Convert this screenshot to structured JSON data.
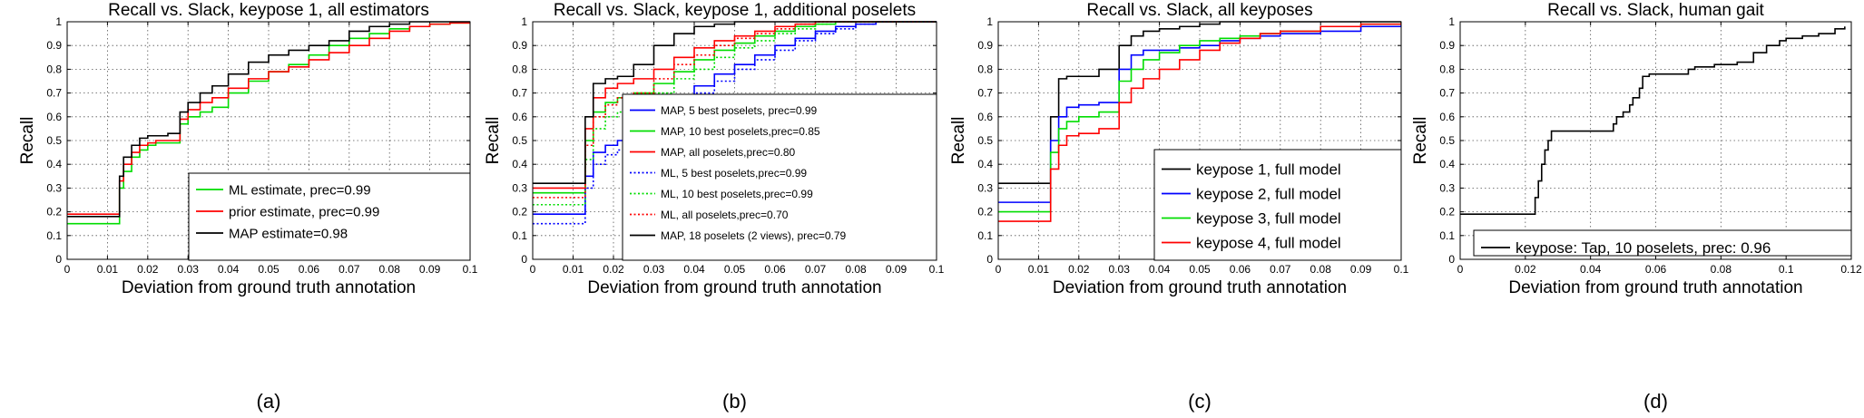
{
  "chart_data": [
    {
      "type": "line",
      "panel_label": "(a)",
      "title": "Recall vs. Slack, keypose 1, all estimators",
      "xlabel": "Deviation from ground truth annotation",
      "ylabel": "Recall",
      "xlim": [
        0,
        0.1
      ],
      "ylim": [
        0,
        1
      ],
      "xticks": [
        "0",
        "0.01",
        "0.02",
        "0.03",
        "0.04",
        "0.05",
        "0.06",
        "0.07",
        "0.08",
        "0.09",
        "0.1"
      ],
      "yticks": [
        "0",
        "0.1",
        "0.2",
        "0.3",
        "0.4",
        "0.5",
        "0.6",
        "0.7",
        "0.8",
        "0.9",
        "1"
      ],
      "grid": true,
      "legend_position": "bottom-right",
      "series": [
        {
          "name": "ML estimate, prec=0.99",
          "color": "#00dd00",
          "style": "solid",
          "x": [
            0,
            0.012,
            0.013,
            0.014,
            0.016,
            0.018,
            0.02,
            0.022,
            0.025,
            0.028,
            0.03,
            0.033,
            0.036,
            0.04,
            0.045,
            0.05,
            0.055,
            0.06,
            0.065,
            0.07,
            0.075,
            0.08,
            0.085,
            0.09,
            0.095,
            0.1
          ],
          "y": [
            0.15,
            0.15,
            0.3,
            0.37,
            0.43,
            0.46,
            0.48,
            0.49,
            0.49,
            0.57,
            0.6,
            0.62,
            0.64,
            0.7,
            0.75,
            0.79,
            0.82,
            0.86,
            0.9,
            0.93,
            0.95,
            0.97,
            0.98,
            0.99,
            0.995,
            1.0
          ]
        },
        {
          "name": "prior estimate, prec=0.99",
          "color": "#ff0000",
          "style": "solid",
          "x": [
            0,
            0.012,
            0.013,
            0.014,
            0.016,
            0.018,
            0.02,
            0.022,
            0.025,
            0.028,
            0.03,
            0.033,
            0.036,
            0.04,
            0.045,
            0.05,
            0.055,
            0.06,
            0.065,
            0.07,
            0.075,
            0.08,
            0.085,
            0.09,
            0.095,
            0.1
          ],
          "y": [
            0.19,
            0.19,
            0.33,
            0.4,
            0.45,
            0.48,
            0.49,
            0.5,
            0.5,
            0.59,
            0.63,
            0.66,
            0.68,
            0.72,
            0.76,
            0.79,
            0.81,
            0.84,
            0.87,
            0.9,
            0.93,
            0.96,
            0.98,
            0.99,
            0.995,
            1.0
          ]
        },
        {
          "name": "MAP estimate=0.98",
          "color": "#000000",
          "style": "solid",
          "x": [
            0,
            0.012,
            0.013,
            0.014,
            0.016,
            0.018,
            0.02,
            0.022,
            0.025,
            0.028,
            0.03,
            0.033,
            0.036,
            0.04,
            0.045,
            0.05,
            0.055,
            0.06,
            0.065,
            0.07,
            0.075,
            0.08,
            0.085,
            0.09,
            0.095,
            0.1
          ],
          "y": [
            0.18,
            0.18,
            0.35,
            0.43,
            0.48,
            0.51,
            0.52,
            0.52,
            0.53,
            0.62,
            0.66,
            0.7,
            0.73,
            0.78,
            0.83,
            0.86,
            0.88,
            0.9,
            0.92,
            0.96,
            0.98,
            0.99,
            1.0,
            1.0,
            1.0,
            1.0
          ]
        }
      ]
    },
    {
      "type": "line",
      "panel_label": "(b)",
      "title": "Recall vs. Slack, keypose 1, additional poselets",
      "xlabel": "Deviation from ground truth annotation",
      "ylabel": "Recall",
      "xlim": [
        0,
        0.1
      ],
      "ylim": [
        0,
        1
      ],
      "xticks": [
        "0",
        "0.01",
        "0.02",
        "0.03",
        "0.04",
        "0.05",
        "0.06",
        "0.07",
        "0.08",
        "0.09",
        "0.1"
      ],
      "yticks": [
        "0",
        "0.1",
        "0.2",
        "0.3",
        "0.4",
        "0.5",
        "0.6",
        "0.7",
        "0.8",
        "0.9",
        "1"
      ],
      "grid": true,
      "legend_position": "bottom-right",
      "series": [
        {
          "name": "MAP, 5 best poselets, prec=0.99",
          "color": "#0000ff",
          "style": "solid",
          "x": [
            0,
            0.012,
            0.013,
            0.015,
            0.018,
            0.021,
            0.025,
            0.03,
            0.035,
            0.04,
            0.045,
            0.05,
            0.055,
            0.06,
            0.065,
            0.07,
            0.075,
            0.08,
            0.085,
            0.09,
            0.1
          ],
          "y": [
            0.19,
            0.19,
            0.35,
            0.45,
            0.48,
            0.5,
            0.52,
            0.6,
            0.67,
            0.73,
            0.78,
            0.82,
            0.86,
            0.9,
            0.93,
            0.96,
            0.98,
            0.99,
            1.0,
            1.0,
            1.0
          ]
        },
        {
          "name": "MAP, 10 best poselets,prec=0.85",
          "color": "#00dd00",
          "style": "solid",
          "x": [
            0,
            0.012,
            0.013,
            0.015,
            0.018,
            0.021,
            0.025,
            0.03,
            0.035,
            0.04,
            0.045,
            0.05,
            0.055,
            0.06,
            0.065,
            0.07,
            0.075,
            0.08,
            0.085,
            0.09,
            0.1
          ],
          "y": [
            0.28,
            0.28,
            0.5,
            0.62,
            0.66,
            0.68,
            0.7,
            0.74,
            0.79,
            0.84,
            0.88,
            0.91,
            0.94,
            0.96,
            0.98,
            0.99,
            1.0,
            1.0,
            1.0,
            1.0,
            1.0
          ]
        },
        {
          "name": "MAP, all poselets,prec=0.80",
          "color": "#ff0000",
          "style": "solid",
          "x": [
            0,
            0.012,
            0.013,
            0.015,
            0.018,
            0.021,
            0.025,
            0.03,
            0.035,
            0.04,
            0.045,
            0.05,
            0.055,
            0.06,
            0.065,
            0.07,
            0.075,
            0.08,
            0.085,
            0.09,
            0.1
          ],
          "y": [
            0.3,
            0.3,
            0.55,
            0.68,
            0.72,
            0.74,
            0.76,
            0.8,
            0.85,
            0.89,
            0.92,
            0.94,
            0.96,
            0.98,
            0.99,
            1.0,
            1.0,
            1.0,
            1.0,
            1.0,
            1.0
          ]
        },
        {
          "name": "ML, 5 best poselets,prec=0.99",
          "color": "#0000ff",
          "style": "dotted",
          "x": [
            0,
            0.012,
            0.013,
            0.015,
            0.018,
            0.021,
            0.025,
            0.03,
            0.035,
            0.04,
            0.045,
            0.05,
            0.055,
            0.06,
            0.065,
            0.07,
            0.075,
            0.08,
            0.085,
            0.09,
            0.1
          ],
          "y": [
            0.15,
            0.15,
            0.3,
            0.4,
            0.44,
            0.46,
            0.48,
            0.56,
            0.64,
            0.7,
            0.75,
            0.8,
            0.84,
            0.88,
            0.92,
            0.95,
            0.97,
            0.99,
            1.0,
            1.0,
            1.0
          ]
        },
        {
          "name": "ML, 10 best poselets,prec=0.99",
          "color": "#00dd00",
          "style": "dotted",
          "x": [
            0,
            0.012,
            0.013,
            0.015,
            0.018,
            0.021,
            0.025,
            0.03,
            0.035,
            0.04,
            0.045,
            0.05,
            0.055,
            0.06,
            0.065,
            0.07,
            0.075,
            0.08,
            0.085,
            0.09,
            0.1
          ],
          "y": [
            0.23,
            0.23,
            0.42,
            0.55,
            0.6,
            0.62,
            0.64,
            0.7,
            0.76,
            0.8,
            0.85,
            0.89,
            0.92,
            0.95,
            0.97,
            0.99,
            1.0,
            1.0,
            1.0,
            1.0,
            1.0
          ]
        },
        {
          "name": "ML, all poselets,prec=0.70",
          "color": "#ff0000",
          "style": "dotted",
          "x": [
            0,
            0.012,
            0.013,
            0.015,
            0.018,
            0.021,
            0.025,
            0.03,
            0.035,
            0.04,
            0.045,
            0.05,
            0.055,
            0.06,
            0.065,
            0.07,
            0.075,
            0.08,
            0.085,
            0.09,
            0.1
          ],
          "y": [
            0.26,
            0.26,
            0.48,
            0.6,
            0.65,
            0.68,
            0.7,
            0.76,
            0.82,
            0.86,
            0.9,
            0.93,
            0.95,
            0.97,
            0.99,
            1.0,
            1.0,
            1.0,
            1.0,
            1.0,
            1.0
          ]
        },
        {
          "name": "MAP, 18 poselets (2 views),  prec=0.79",
          "color": "#000000",
          "style": "solid",
          "x": [
            0,
            0.012,
            0.013,
            0.015,
            0.018,
            0.021,
            0.025,
            0.03,
            0.035,
            0.04,
            0.045,
            0.05,
            0.055,
            0.06,
            0.065,
            0.07,
            0.075,
            0.08,
            0.085,
            0.09,
            0.1
          ],
          "y": [
            0.32,
            0.32,
            0.6,
            0.74,
            0.76,
            0.77,
            0.82,
            0.9,
            0.95,
            0.98,
            0.99,
            1.0,
            1.0,
            1.0,
            1.0,
            1.0,
            1.0,
            1.0,
            1.0,
            1.0,
            1.0
          ]
        }
      ]
    },
    {
      "type": "line",
      "panel_label": "(c)",
      "title": "Recall vs. Slack, all keyposes",
      "xlabel": "Deviation from ground truth annotation",
      "ylabel": "Recall",
      "xlim": [
        0,
        0.1
      ],
      "ylim": [
        0,
        1
      ],
      "xticks": [
        "0",
        "0.01",
        "0.02",
        "0.03",
        "0.04",
        "0.05",
        "0.06",
        "0.07",
        "0.08",
        "0.09",
        "0.1"
      ],
      "yticks": [
        "0",
        "0.1",
        "0.2",
        "0.3",
        "0.4",
        "0.5",
        "0.6",
        "0.7",
        "0.8",
        "0.9",
        "1"
      ],
      "grid": true,
      "legend_position": "bottom-right",
      "series": [
        {
          "name": "keypose 1, full model",
          "color": "#000000",
          "style": "solid",
          "x": [
            0,
            0.012,
            0.013,
            0.015,
            0.017,
            0.02,
            0.025,
            0.03,
            0.033,
            0.036,
            0.04,
            0.045,
            0.05,
            0.055,
            0.06,
            0.065,
            0.07,
            0.08,
            0.09,
            0.1
          ],
          "y": [
            0.32,
            0.32,
            0.6,
            0.76,
            0.77,
            0.77,
            0.8,
            0.9,
            0.94,
            0.96,
            0.97,
            0.98,
            0.99,
            1.0,
            1.0,
            1.0,
            1.0,
            1.0,
            1.0,
            1.0
          ]
        },
        {
          "name": "keypose 2, full model",
          "color": "#0000ff",
          "style": "solid",
          "x": [
            0,
            0.012,
            0.013,
            0.015,
            0.017,
            0.02,
            0.025,
            0.03,
            0.033,
            0.036,
            0.04,
            0.045,
            0.05,
            0.055,
            0.06,
            0.065,
            0.07,
            0.08,
            0.09,
            0.1
          ],
          "y": [
            0.24,
            0.24,
            0.5,
            0.6,
            0.64,
            0.65,
            0.66,
            0.8,
            0.86,
            0.88,
            0.88,
            0.89,
            0.9,
            0.92,
            0.93,
            0.94,
            0.95,
            0.96,
            0.98,
            0.99
          ]
        },
        {
          "name": "keypose 3, full model",
          "color": "#00dd00",
          "style": "solid",
          "x": [
            0,
            0.012,
            0.013,
            0.015,
            0.017,
            0.02,
            0.025,
            0.03,
            0.033,
            0.036,
            0.04,
            0.045,
            0.05,
            0.055,
            0.06,
            0.065,
            0.07,
            0.08,
            0.09,
            0.1
          ],
          "y": [
            0.2,
            0.2,
            0.45,
            0.55,
            0.58,
            0.6,
            0.62,
            0.75,
            0.8,
            0.84,
            0.87,
            0.9,
            0.92,
            0.93,
            0.94,
            0.95,
            0.96,
            0.98,
            0.99,
            1.0
          ]
        },
        {
          "name": "keypose 4, full model",
          "color": "#ff0000",
          "style": "solid",
          "x": [
            0,
            0.012,
            0.013,
            0.015,
            0.017,
            0.02,
            0.025,
            0.03,
            0.033,
            0.036,
            0.04,
            0.045,
            0.05,
            0.055,
            0.06,
            0.065,
            0.07,
            0.08,
            0.09,
            0.1
          ],
          "y": [
            0.16,
            0.16,
            0.38,
            0.48,
            0.52,
            0.53,
            0.55,
            0.66,
            0.72,
            0.76,
            0.8,
            0.84,
            0.88,
            0.91,
            0.93,
            0.95,
            0.96,
            0.98,
            0.99,
            1.0
          ]
        }
      ]
    },
    {
      "type": "line",
      "panel_label": "(d)",
      "title": "Recall vs. Slack, human gait",
      "xlabel": "Deviation from ground truth annotation",
      "ylabel": "Recall",
      "xlim": [
        0,
        0.12
      ],
      "ylim": [
        0,
        1
      ],
      "xticks": [
        "0",
        "0.02",
        "0.04",
        "0.06",
        "0.08",
        "0.1",
        "0.12"
      ],
      "yticks": [
        "0",
        "0.1",
        "0.2",
        "0.3",
        "0.4",
        "0.5",
        "0.6",
        "0.7",
        "0.8",
        "0.9",
        "1"
      ],
      "grid": true,
      "legend_position": "bottom",
      "series": [
        {
          "name": "keypose: Tap, 10 poselets, prec: 0.96",
          "color": "#000000",
          "style": "solid",
          "x": [
            0,
            0.022,
            0.023,
            0.024,
            0.025,
            0.026,
            0.027,
            0.028,
            0.03,
            0.045,
            0.047,
            0.048,
            0.05,
            0.052,
            0.053,
            0.055,
            0.056,
            0.058,
            0.065,
            0.07,
            0.072,
            0.078,
            0.085,
            0.09,
            0.094,
            0.098,
            0.1,
            0.105,
            0.11,
            0.115,
            0.118
          ],
          "y": [
            0.19,
            0.19,
            0.26,
            0.33,
            0.4,
            0.46,
            0.5,
            0.54,
            0.54,
            0.54,
            0.57,
            0.6,
            0.62,
            0.65,
            0.68,
            0.72,
            0.77,
            0.78,
            0.78,
            0.8,
            0.81,
            0.82,
            0.83,
            0.87,
            0.9,
            0.92,
            0.93,
            0.94,
            0.95,
            0.97,
            0.98
          ]
        }
      ]
    }
  ]
}
